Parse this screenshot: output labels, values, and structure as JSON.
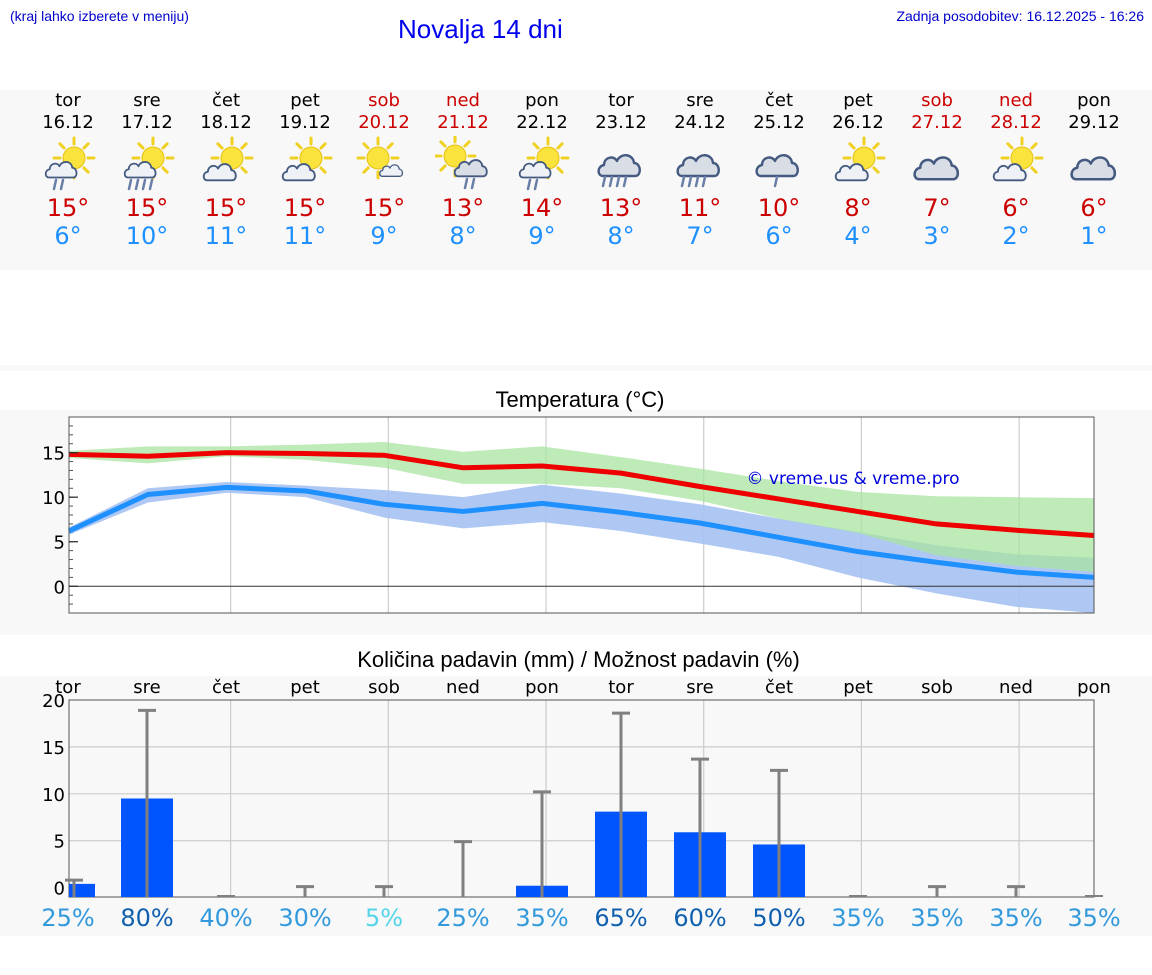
{
  "header": {
    "location_hint": "(kraj lahko izberete v meniju)",
    "title": "Novalja 14 dni",
    "updated": "Zadnja posodobitev: 16.12.2025 - 16:26"
  },
  "days": [
    {
      "name": "tor",
      "date": "16.12",
      "weekend": false,
      "icon": "partly-sunny-showers-icon",
      "tmax": "15°",
      "tmin": "6°"
    },
    {
      "name": "sre",
      "date": "17.12",
      "weekend": false,
      "icon": "partly-sunny-heavy-rain-icon",
      "tmax": "15°",
      "tmin": "10°"
    },
    {
      "name": "čet",
      "date": "18.12",
      "weekend": false,
      "icon": "partly-cloudy-icon",
      "tmax": "15°",
      "tmin": "11°"
    },
    {
      "name": "pet",
      "date": "19.12",
      "weekend": false,
      "icon": "partly-cloudy-icon",
      "tmax": "15°",
      "tmin": "11°"
    },
    {
      "name": "sob",
      "date": "20.12",
      "weekend": true,
      "icon": "mostly-sunny-icon",
      "tmax": "15°",
      "tmin": "9°"
    },
    {
      "name": "ned",
      "date": "21.12",
      "weekend": true,
      "icon": "sun-cloud-showers-icon",
      "tmax": "13°",
      "tmin": "8°"
    },
    {
      "name": "pon",
      "date": "22.12",
      "weekend": false,
      "icon": "partly-sunny-showers-icon",
      "tmax": "14°",
      "tmin": "9°"
    },
    {
      "name": "tor",
      "date": "23.12",
      "weekend": false,
      "icon": "cloudy-heavy-rain-icon",
      "tmax": "13°",
      "tmin": "8°"
    },
    {
      "name": "sre",
      "date": "24.12",
      "weekend": false,
      "icon": "cloudy-heavy-rain-icon",
      "tmax": "11°",
      "tmin": "7°"
    },
    {
      "name": "čet",
      "date": "25.12",
      "weekend": false,
      "icon": "cloudy-showers-icon",
      "tmax": "10°",
      "tmin": "6°"
    },
    {
      "name": "pet",
      "date": "26.12",
      "weekend": false,
      "icon": "partly-cloudy-icon",
      "tmax": "8°",
      "tmin": "4°"
    },
    {
      "name": "sob",
      "date": "27.12",
      "weekend": true,
      "icon": "cloudy-icon",
      "tmax": "7°",
      "tmin": "3°"
    },
    {
      "name": "ned",
      "date": "28.12",
      "weekend": true,
      "icon": "partly-cloudy-icon",
      "tmax": "6°",
      "tmin": "2°"
    },
    {
      "name": "pon",
      "date": "29.12",
      "weekend": false,
      "icon": "cloudy-icon",
      "tmax": "6°",
      "tmin": "1°"
    }
  ],
  "colors": {
    "max_line": "#ee0000",
    "min_line": "#1e90ff",
    "max_band": "#a8e4a0",
    "min_band": "#a6c2f2",
    "overlap_band": "#7fc8a8",
    "bar": "#0055ff",
    "error_bar": "#808080"
  },
  "chart_data": [
    {
      "type": "line",
      "title": "Temperatura (°C)",
      "watermark": "© vreme.us & vreme.pro",
      "x": [
        0,
        1,
        2,
        3,
        4,
        5,
        6,
        7,
        8,
        9,
        10,
        11,
        12,
        13
      ],
      "ylim": [
        -3,
        19
      ],
      "yticks": [
        0,
        5,
        10,
        15
      ],
      "series": [
        {
          "name": "max",
          "values": [
            14.8,
            14.6,
            15.0,
            14.9,
            14.7,
            13.3,
            13.5,
            12.7,
            11.2,
            9.8,
            8.4,
            7.0,
            6.3,
            5.7
          ],
          "band_low": [
            14.4,
            13.8,
            14.6,
            14.2,
            13.3,
            11.5,
            11.5,
            11.0,
            9.6,
            7.6,
            6.0,
            3.5,
            2.3,
            1.6
          ],
          "band_high": [
            15.2,
            15.7,
            15.7,
            15.9,
            16.2,
            15.1,
            15.7,
            14.5,
            13.2,
            11.8,
            10.6,
            10.1,
            10.0,
            9.9
          ]
        },
        {
          "name": "min",
          "values": [
            6.2,
            10.3,
            11.1,
            10.7,
            9.2,
            8.4,
            9.3,
            8.3,
            7.1,
            5.5,
            3.9,
            2.7,
            1.6,
            1.0
          ],
          "band_low": [
            5.8,
            9.4,
            10.5,
            10.0,
            7.7,
            6.5,
            7.2,
            6.2,
            4.8,
            3.3,
            1.0,
            -0.8,
            -2.3,
            -3.0
          ],
          "band_high": [
            6.6,
            11.0,
            11.7,
            11.3,
            10.8,
            10.0,
            11.4,
            10.4,
            9.2,
            7.6,
            6.1,
            4.6,
            3.6,
            3.2
          ]
        }
      ]
    },
    {
      "type": "bar",
      "title": "Količina padavin (mm) / Možnost padavin (%)",
      "categories": [
        "tor",
        "sre",
        "čet",
        "pet",
        "sob",
        "ned",
        "pon",
        "tor",
        "sre",
        "čet",
        "pet",
        "sob",
        "ned",
        "pon"
      ],
      "values": [
        0.4,
        9.5,
        0,
        0,
        0,
        0,
        0.2,
        8.1,
        5.9,
        4.6,
        0,
        0,
        0,
        0
      ],
      "error_high": [
        0.8,
        18.9,
        0,
        0.1,
        0.1,
        4.9,
        10.2,
        18.6,
        13.7,
        12.5,
        0,
        0.1,
        0.1,
        0
      ],
      "chance_labels": [
        "25%",
        "80%",
        "40%",
        "30%",
        "5%",
        "25%",
        "35%",
        "65%",
        "60%",
        "50%",
        "35%",
        "35%",
        "35%",
        "35%"
      ],
      "chance_colors": [
        "#3399dd",
        "#1060b0",
        "#3399dd",
        "#3399dd",
        "#55d4e8",
        "#3399dd",
        "#3399dd",
        "#1060b0",
        "#1060b0",
        "#1060b0",
        "#3399dd",
        "#3399dd",
        "#3399dd",
        "#3399dd"
      ],
      "ylim": [
        -1,
        20
      ],
      "yticks": [
        0,
        5,
        10,
        15,
        20
      ]
    }
  ]
}
